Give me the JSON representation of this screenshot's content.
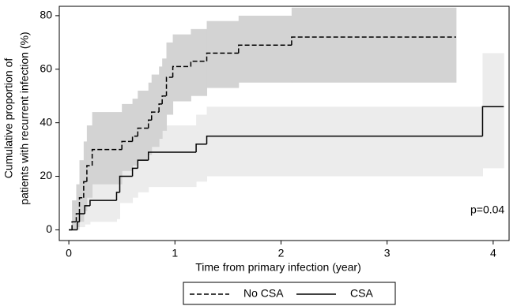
{
  "chart_data": {
    "type": "step",
    "xlabel": "Time from primary infection (year)",
    "ylabel": [
      "Cumulative proportion of",
      "patients with recurrent infection (%)"
    ],
    "annotation": "p=0.04",
    "xlim": [
      -0.09,
      4.15
    ],
    "ylim": [
      -4,
      83.5
    ],
    "xticks": [
      0,
      1,
      2,
      3,
      4
    ],
    "yticks": [
      0,
      20,
      40,
      60,
      80
    ],
    "legend": "bottom",
    "series": [
      {
        "name": "CSA",
        "color": "#000000",
        "line_style": "solid",
        "band_color": "#ececec",
        "x": [
          0,
          0.08,
          0.1,
          0.15,
          0.2,
          0.45,
          0.48,
          0.6,
          0.65,
          0.75,
          1.2,
          1.3,
          3.9,
          4.1
        ],
        "values": [
          0,
          3,
          6,
          9,
          11,
          14,
          20,
          23,
          26,
          29,
          32,
          35,
          46,
          46
        ],
        "lower": [
          0,
          0,
          1,
          2,
          3,
          4,
          10,
          12,
          14,
          16,
          18,
          20,
          23,
          23
        ],
        "upper": [
          0,
          11,
          17,
          21,
          24,
          25,
          32,
          34,
          37,
          39,
          43,
          46,
          66,
          66
        ]
      },
      {
        "name": "No CSA",
        "color": "#000000",
        "line_style": "dashed",
        "band_color": "#d3d3d3",
        "x": [
          0,
          0.03,
          0.07,
          0.1,
          0.14,
          0.17,
          0.22,
          0.5,
          0.6,
          0.65,
          0.75,
          0.78,
          0.85,
          0.88,
          0.92,
          0.98,
          1.15,
          1.3,
          1.6,
          2.1,
          3.65
        ],
        "values": [
          0,
          3,
          6,
          12,
          18,
          24,
          30,
          33,
          35,
          38,
          41,
          44,
          47,
          50,
          57,
          61,
          63,
          66,
          69,
          72,
          72
        ],
        "lower": [
          0,
          0,
          1,
          3,
          7,
          12,
          17,
          22,
          24,
          26,
          28,
          31,
          34,
          37,
          43,
          48,
          50,
          53,
          55,
          55,
          55
        ],
        "upper": [
          0,
          11,
          17,
          26,
          33,
          39,
          44,
          47,
          49,
          52,
          55,
          58,
          61,
          64,
          70,
          73,
          75,
          78,
          80,
          83,
          83
        ]
      }
    ]
  }
}
